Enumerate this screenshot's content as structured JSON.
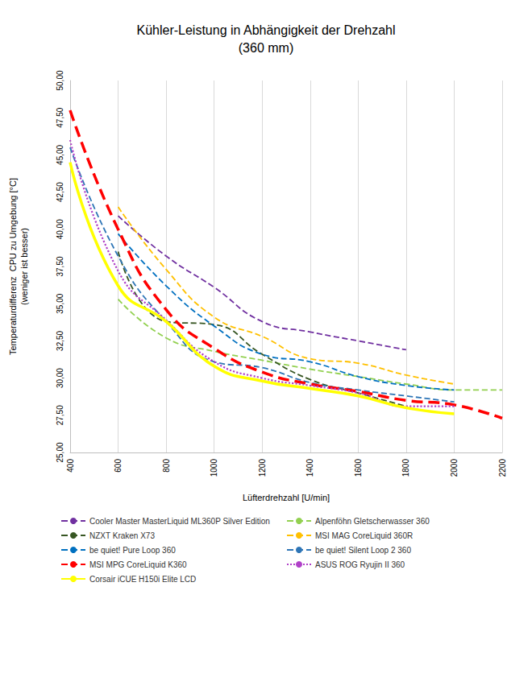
{
  "chart_data": {
    "type": "line",
    "title": "Kühler-Leistung in Abhängigkeit der Drehzahl",
    "subtitle": "(360 mm)",
    "x_label": "Lüfterdrehzahl [U/min]",
    "y_label": "Temperaturdifferenz  CPU zu Umgebung [°C]",
    "y_label_note": "(weniger ist besser)",
    "x": [
      400,
      600,
      800,
      1000,
      1200,
      1400,
      1600,
      1800,
      2000,
      2200
    ],
    "series": [
      {
        "name": "Cooler Master MasterLiquid ML360P Silver Edition",
        "color": "#7030a0",
        "line_style": "dashed",
        "values": [
          null,
          40.9,
          38.2,
          36.1,
          33.8,
          33.1,
          32.5,
          31.9,
          null,
          null
        ]
      },
      {
        "name": "Alpenföhn Gletscherwasser 360",
        "color": "#92d050",
        "line_style": "dashed",
        "values": [
          null,
          35.3,
          32.7,
          31.8,
          31.2,
          30.6,
          30.1,
          29.6,
          29.2,
          29.2
        ]
      },
      {
        "name": "NZXT Kraken X73",
        "color": "#375623",
        "line_style": "dashed",
        "values": [
          null,
          38.5,
          33.8,
          33.6,
          31.6,
          29.9,
          29.0,
          28.1,
          null,
          null
        ]
      },
      {
        "name": "MSI MAG CoreLiquid 360R",
        "color": "#ffc000",
        "line_style": "dashed",
        "values": [
          null,
          41.5,
          37.3,
          34.1,
          32.8,
          31.3,
          31.0,
          30.2,
          29.6,
          null
        ]
      },
      {
        "name": "be quiet! Pure Loop 360",
        "color": "#0070c0",
        "line_style": "dashed",
        "values": [
          null,
          39.7,
          36.2,
          33.5,
          31.6,
          31.1,
          30.1,
          29.5,
          29.2,
          null
        ]
      },
      {
        "name": "be quiet! Silent Loop 2 360",
        "color": "#2e75b6",
        "line_style": "dashed",
        "values": [
          45.5,
          38.2,
          33.8,
          31.1,
          30.7,
          29.7,
          29.2,
          28.8,
          28.4,
          null
        ]
      },
      {
        "name": "MSI MPG CoreLiquid K360",
        "color": "#ff0000",
        "line_style": "dashed",
        "values": [
          48.0,
          40.0,
          34.6,
          32.0,
          30.4,
          29.6,
          29.1,
          28.5,
          28.2,
          27.3
        ]
      },
      {
        "name": "ASUS ROG Ryujin II 360",
        "color": "#b040c8",
        "line_style": "dotted",
        "values": [
          46.0,
          37.2,
          33.9,
          31.1,
          30.0,
          29.5,
          29.0,
          28.1,
          28.1,
          null
        ]
      },
      {
        "name": "Corsair iCUE H150i Elite LCD",
        "color": "#ffff00",
        "line_style": "solid",
        "values": [
          44.5,
          36.2,
          33.8,
          30.8,
          29.8,
          29.3,
          28.8,
          28.0,
          27.6,
          null
        ]
      }
    ],
    "xlim": [
      400,
      2200
    ],
    "xticks": [
      400,
      600,
      800,
      1000,
      1200,
      1400,
      1600,
      1800,
      2000,
      2200
    ],
    "ylim": [
      25,
      50
    ],
    "yticks": [
      {
        "value": 25,
        "label": "25,00"
      },
      {
        "value": 27.5,
        "label": "27,50"
      },
      {
        "value": 30,
        "label": "30,00"
      },
      {
        "value": 32.5,
        "label": "32,50"
      },
      {
        "value": 35,
        "label": "35,00"
      },
      {
        "value": 37.5,
        "label": "37,50"
      },
      {
        "value": 40,
        "label": "40,00"
      },
      {
        "value": 42.5,
        "label": "42,50"
      },
      {
        "value": 45,
        "label": "45,00"
      },
      {
        "value": 47.5,
        "label": "47,50"
      },
      {
        "value": 50,
        "label": "50,00"
      }
    ],
    "grid": true,
    "legend": "bottom"
  }
}
